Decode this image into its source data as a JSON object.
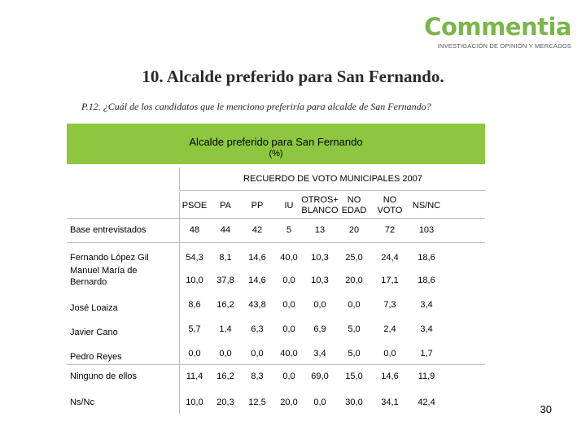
{
  "logo": {
    "name": "Commentia",
    "tagline": "INVESTIGACIÓN DE OPINIÓN Y MERCADOS"
  },
  "title": "10. Alcalde preferido para San Fernando.",
  "question": "P.12. ¿Cuál de los candidatos que le menciono preferiría para alcalde de San Fernando?",
  "banner": {
    "title": "Alcalde preferido para San Fernando",
    "subtitle": "(%)"
  },
  "colors": {
    "banner": "#8dc63f",
    "logo": "#7ab648"
  },
  "table": {
    "group_header": "RECUERDO DE VOTO MUNICIPALES 2007",
    "columns": [
      "PSOE",
      "PA",
      "PP",
      "IU",
      "OTROS+\nBLANCO",
      "NO\nEDAD",
      "NO\nVOTO",
      "NS/NC"
    ],
    "rows": [
      {
        "label": "Base entrevistados",
        "values": [
          "48",
          "44",
          "42",
          "5",
          "13",
          "20",
          "72",
          "103"
        ]
      },
      {
        "label": "Fernando López Gil",
        "values": [
          "54,3",
          "8,1",
          "14,6",
          "40,0",
          "10,3",
          "25,0",
          "24,4",
          "18,6"
        ]
      },
      {
        "label": "Manuel María de\nBernardo",
        "values": [
          "10,0",
          "37,8",
          "14,6",
          "0,0",
          "10,3",
          "20,0",
          "17,1",
          "18,6"
        ]
      },
      {
        "label": "José Loaiza",
        "values": [
          "8,6",
          "16,2",
          "43,8",
          "0,0",
          "0,0",
          "0,0",
          "7,3",
          "3,4"
        ]
      },
      {
        "label": "Javier Cano",
        "values": [
          "5,7",
          "1,4",
          "6,3",
          "0,0",
          "6,9",
          "5,0",
          "2,4",
          "3,4"
        ]
      },
      {
        "label": "Pedro Reyes",
        "values": [
          "0,0",
          "0,0",
          "0,0",
          "40,0",
          "3,4",
          "5,0",
          "0,0",
          "1,7"
        ]
      },
      {
        "label": "Ninguno de ellos",
        "values": [
          "11,4",
          "16,2",
          "8,3",
          "0,0",
          "69,0",
          "15,0",
          "14,6",
          "11,9"
        ]
      },
      {
        "label": "Ns/Nc",
        "values": [
          "10,0",
          "20,3",
          "12,5",
          "20,0",
          "0,0",
          "30,0",
          "34,1",
          "42,4"
        ]
      }
    ]
  },
  "page_number": "30"
}
